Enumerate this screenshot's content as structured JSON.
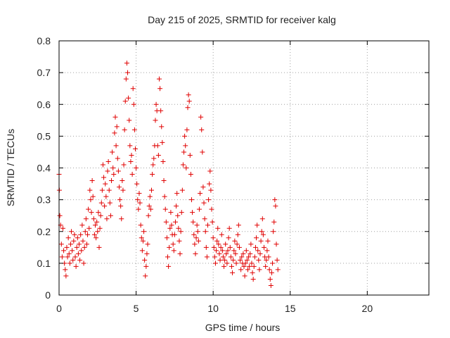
{
  "chart_data": {
    "type": "scatter",
    "title": "Day 215 of 2025, SRMTID for receiver kalg",
    "xlabel": "GPS time / hours",
    "ylabel": "SRMTID / TECUs",
    "xlim": [
      0,
      24
    ],
    "ylim": [
      0,
      0.8
    ],
    "xticks": [
      0,
      5,
      10,
      15,
      20
    ],
    "xtick_labels": [
      "0",
      "5",
      "10",
      "15",
      "20"
    ],
    "yticks": [
      0,
      0.1,
      0.2,
      0.3,
      0.4,
      0.5,
      0.6,
      0.7,
      0.8
    ],
    "ytick_labels": [
      "0",
      "0.1",
      "0.2",
      "0.3",
      "0.4",
      "0.5",
      "0.6",
      "0.7",
      "0.8"
    ],
    "grid": true,
    "marker": "plus",
    "color": "#e00000",
    "series": [
      {
        "name": "SRMTID",
        "points": [
          [
            0.0,
            0.38
          ],
          [
            0.02,
            0.33
          ],
          [
            0.05,
            0.25
          ],
          [
            0.1,
            0.22
          ],
          [
            0.15,
            0.16
          ],
          [
            0.2,
            0.12
          ],
          [
            0.25,
            0.21
          ],
          [
            0.3,
            0.14
          ],
          [
            0.35,
            0.1
          ],
          [
            0.4,
            0.08
          ],
          [
            0.45,
            0.06
          ],
          [
            0.5,
            0.15
          ],
          [
            0.55,
            0.12
          ],
          [
            0.6,
            0.18
          ],
          [
            0.65,
            0.13
          ],
          [
            0.7,
            0.1
          ],
          [
            0.75,
            0.16
          ],
          [
            0.8,
            0.2
          ],
          [
            0.85,
            0.14
          ],
          [
            0.9,
            0.11
          ],
          [
            0.95,
            0.17
          ],
          [
            1.0,
            0.19
          ],
          [
            1.05,
            0.12
          ],
          [
            1.1,
            0.09
          ],
          [
            1.15,
            0.15
          ],
          [
            1.2,
            0.18
          ],
          [
            1.25,
            0.13
          ],
          [
            1.3,
            0.16
          ],
          [
            1.35,
            0.11
          ],
          [
            1.4,
            0.19
          ],
          [
            1.45,
            0.14
          ],
          [
            1.5,
            0.22
          ],
          [
            1.55,
            0.17
          ],
          [
            1.6,
            0.1
          ],
          [
            1.65,
            0.15
          ],
          [
            1.7,
            0.2
          ],
          [
            1.75,
            0.24
          ],
          [
            1.8,
            0.16
          ],
          [
            1.85,
            0.19
          ],
          [
            1.9,
            0.27
          ],
          [
            1.95,
            0.21
          ],
          [
            2.0,
            0.33
          ],
          [
            2.05,
            0.3
          ],
          [
            2.1,
            0.26
          ],
          [
            2.15,
            0.36
          ],
          [
            2.2,
            0.31
          ],
          [
            2.25,
            0.24
          ],
          [
            2.3,
            0.19
          ],
          [
            2.35,
            0.22
          ],
          [
            2.4,
            0.18
          ],
          [
            2.45,
            0.23
          ],
          [
            2.5,
            0.2
          ],
          [
            2.55,
            0.26
          ],
          [
            2.6,
            0.15
          ],
          [
            2.65,
            0.21
          ],
          [
            2.7,
            0.25
          ],
          [
            2.75,
            0.29
          ],
          [
            2.8,
            0.33
          ],
          [
            2.85,
            0.41
          ],
          [
            2.9,
            0.37
          ],
          [
            2.95,
            0.28
          ],
          [
            3.0,
            0.35
          ],
          [
            3.05,
            0.31
          ],
          [
            3.1,
            0.24
          ],
          [
            3.15,
            0.39
          ],
          [
            3.2,
            0.42
          ],
          [
            3.25,
            0.33
          ],
          [
            3.3,
            0.29
          ],
          [
            3.35,
            0.25
          ],
          [
            3.4,
            0.36
          ],
          [
            3.45,
            0.45
          ],
          [
            3.5,
            0.4
          ],
          [
            3.55,
            0.38
          ],
          [
            3.6,
            0.51
          ],
          [
            3.65,
            0.56
          ],
          [
            3.7,
            0.47
          ],
          [
            3.75,
            0.53
          ],
          [
            3.8,
            0.43
          ],
          [
            3.85,
            0.39
          ],
          [
            3.9,
            0.34
          ],
          [
            3.95,
            0.3
          ],
          [
            4.0,
            0.28
          ],
          [
            4.05,
            0.24
          ],
          [
            4.1,
            0.36
          ],
          [
            4.15,
            0.33
          ],
          [
            4.2,
            0.41
          ],
          [
            4.25,
            0.52
          ],
          [
            4.3,
            0.61
          ],
          [
            4.35,
            0.68
          ],
          [
            4.4,
            0.73
          ],
          [
            4.45,
            0.7
          ],
          [
            4.5,
            0.62
          ],
          [
            4.55,
            0.55
          ],
          [
            4.6,
            0.47
          ],
          [
            4.65,
            0.42
          ],
          [
            4.7,
            0.44
          ],
          [
            4.75,
            0.38
          ],
          [
            4.8,
            0.65
          ],
          [
            4.85,
            0.6
          ],
          [
            4.9,
            0.52
          ],
          [
            4.95,
            0.46
          ],
          [
            5.0,
            0.4
          ],
          [
            5.05,
            0.35
          ],
          [
            5.1,
            0.3
          ],
          [
            5.15,
            0.27
          ],
          [
            5.2,
            0.32
          ],
          [
            5.25,
            0.29
          ],
          [
            5.3,
            0.22
          ],
          [
            5.35,
            0.18
          ],
          [
            5.4,
            0.14
          ],
          [
            5.45,
            0.17
          ],
          [
            5.5,
            0.2
          ],
          [
            5.55,
            0.11
          ],
          [
            5.6,
            0.06
          ],
          [
            5.65,
            0.09
          ],
          [
            5.7,
            0.13
          ],
          [
            5.75,
            0.16
          ],
          [
            5.8,
            0.25
          ],
          [
            5.85,
            0.28
          ],
          [
            5.9,
            0.31
          ],
          [
            5.95,
            0.27
          ],
          [
            6.0,
            0.33
          ],
          [
            6.05,
            0.38
          ],
          [
            6.1,
            0.41
          ],
          [
            6.15,
            0.43
          ],
          [
            6.2,
            0.47
          ],
          [
            6.25,
            0.55
          ],
          [
            6.3,
            0.6
          ],
          [
            6.35,
            0.58
          ],
          [
            6.4,
            0.47
          ],
          [
            6.45,
            0.44
          ],
          [
            6.5,
            0.68
          ],
          [
            6.55,
            0.65
          ],
          [
            6.6,
            0.58
          ],
          [
            6.65,
            0.53
          ],
          [
            6.7,
            0.48
          ],
          [
            6.75,
            0.42
          ],
          [
            6.8,
            0.36
          ],
          [
            6.85,
            0.31
          ],
          [
            6.9,
            0.27
          ],
          [
            6.95,
            0.23
          ],
          [
            7.0,
            0.18
          ],
          [
            7.05,
            0.12
          ],
          [
            7.1,
            0.09
          ],
          [
            7.15,
            0.15
          ],
          [
            7.2,
            0.21
          ],
          [
            7.25,
            0.26
          ],
          [
            7.3,
            0.22
          ],
          [
            7.35,
            0.19
          ],
          [
            7.4,
            0.16
          ],
          [
            7.45,
            0.14
          ],
          [
            7.5,
            0.19
          ],
          [
            7.55,
            0.23
          ],
          [
            7.6,
            0.28
          ],
          [
            7.65,
            0.32
          ],
          [
            7.7,
            0.25
          ],
          [
            7.75,
            0.21
          ],
          [
            7.8,
            0.17
          ],
          [
            7.85,
            0.13
          ],
          [
            7.9,
            0.2
          ],
          [
            7.95,
            0.26
          ],
          [
            8.0,
            0.33
          ],
          [
            8.05,
            0.41
          ],
          [
            8.1,
            0.45
          ],
          [
            8.15,
            0.5
          ],
          [
            8.2,
            0.47
          ],
          [
            8.25,
            0.4
          ],
          [
            8.3,
            0.52
          ],
          [
            8.35,
            0.59
          ],
          [
            8.4,
            0.63
          ],
          [
            8.45,
            0.61
          ],
          [
            8.5,
            0.44
          ],
          [
            8.55,
            0.38
          ],
          [
            8.6,
            0.3
          ],
          [
            8.65,
            0.26
          ],
          [
            8.7,
            0.23
          ],
          [
            8.75,
            0.19
          ],
          [
            8.8,
            0.16
          ],
          [
            8.85,
            0.13
          ],
          [
            8.9,
            0.18
          ],
          [
            8.95,
            0.22
          ],
          [
            9.0,
            0.2
          ],
          [
            9.05,
            0.17
          ],
          [
            9.1,
            0.27
          ],
          [
            9.15,
            0.32
          ],
          [
            9.2,
            0.56
          ],
          [
            9.25,
            0.52
          ],
          [
            9.3,
            0.45
          ],
          [
            9.35,
            0.34
          ],
          [
            9.4,
            0.29
          ],
          [
            9.45,
            0.24
          ],
          [
            9.5,
            0.2
          ],
          [
            9.55,
            0.15
          ],
          [
            9.6,
            0.12
          ],
          [
            9.65,
            0.22
          ],
          [
            9.7,
            0.3
          ],
          [
            9.75,
            0.35
          ],
          [
            9.8,
            0.39
          ],
          [
            9.85,
            0.33
          ],
          [
            9.9,
            0.27
          ],
          [
            9.95,
            0.23
          ],
          [
            10.0,
            0.18
          ],
          [
            10.05,
            0.15
          ],
          [
            10.1,
            0.12
          ],
          [
            10.15,
            0.1
          ],
          [
            10.2,
            0.14
          ],
          [
            10.25,
            0.17
          ],
          [
            10.3,
            0.21
          ],
          [
            10.35,
            0.16
          ],
          [
            10.4,
            0.13
          ],
          [
            10.45,
            0.11
          ],
          [
            10.5,
            0.15
          ],
          [
            10.55,
            0.19
          ],
          [
            10.6,
            0.14
          ],
          [
            10.65,
            0.12
          ],
          [
            10.7,
            0.09
          ],
          [
            10.75,
            0.11
          ],
          [
            10.8,
            0.16
          ],
          [
            10.85,
            0.13
          ],
          [
            10.9,
            0.1
          ],
          [
            10.95,
            0.14
          ],
          [
            11.0,
            0.18
          ],
          [
            11.05,
            0.21
          ],
          [
            11.1,
            0.15
          ],
          [
            11.15,
            0.12
          ],
          [
            11.2,
            0.09
          ],
          [
            11.25,
            0.07
          ],
          [
            11.3,
            0.11
          ],
          [
            11.35,
            0.14
          ],
          [
            11.4,
            0.17
          ],
          [
            11.45,
            0.13
          ],
          [
            11.5,
            0.1
          ],
          [
            11.55,
            0.16
          ],
          [
            11.6,
            0.19
          ],
          [
            11.65,
            0.22
          ],
          [
            11.7,
            0.15
          ],
          [
            11.75,
            0.11
          ],
          [
            11.8,
            0.08
          ],
          [
            11.85,
            0.12
          ],
          [
            11.9,
            0.1
          ],
          [
            11.95,
            0.13
          ],
          [
            12.0,
            0.09
          ],
          [
            12.05,
            0.06
          ],
          [
            12.1,
            0.1
          ],
          [
            12.15,
            0.14
          ],
          [
            12.2,
            0.11
          ],
          [
            12.25,
            0.08
          ],
          [
            12.3,
            0.12
          ],
          [
            12.35,
            0.09
          ],
          [
            12.4,
            0.13
          ],
          [
            12.45,
            0.16
          ],
          [
            12.5,
            0.1
          ],
          [
            12.55,
            0.07
          ],
          [
            12.6,
            0.05
          ],
          [
            12.65,
            0.09
          ],
          [
            12.7,
            0.12
          ],
          [
            12.75,
            0.15
          ],
          [
            12.8,
            0.18
          ],
          [
            12.85,
            0.22
          ],
          [
            12.9,
            0.14
          ],
          [
            12.95,
            0.11
          ],
          [
            13.0,
            0.08
          ],
          [
            13.05,
            0.13
          ],
          [
            13.1,
            0.17
          ],
          [
            13.15,
            0.2
          ],
          [
            13.2,
            0.24
          ],
          [
            13.25,
            0.19
          ],
          [
            13.3,
            0.15
          ],
          [
            13.35,
            0.12
          ],
          [
            13.4,
            0.09
          ],
          [
            13.45,
            0.11
          ],
          [
            13.5,
            0.14
          ],
          [
            13.55,
            0.17
          ],
          [
            13.6,
            0.12
          ],
          [
            13.65,
            0.08
          ],
          [
            13.7,
            0.05
          ],
          [
            13.75,
            0.03
          ],
          [
            13.8,
            0.07
          ],
          [
            13.85,
            0.1
          ],
          [
            13.9,
            0.2
          ],
          [
            13.95,
            0.23
          ],
          [
            14.0,
            0.3
          ],
          [
            14.05,
            0.28
          ],
          [
            14.1,
            0.16
          ],
          [
            14.15,
            0.11
          ],
          [
            14.2,
            0.08
          ]
        ]
      }
    ]
  }
}
